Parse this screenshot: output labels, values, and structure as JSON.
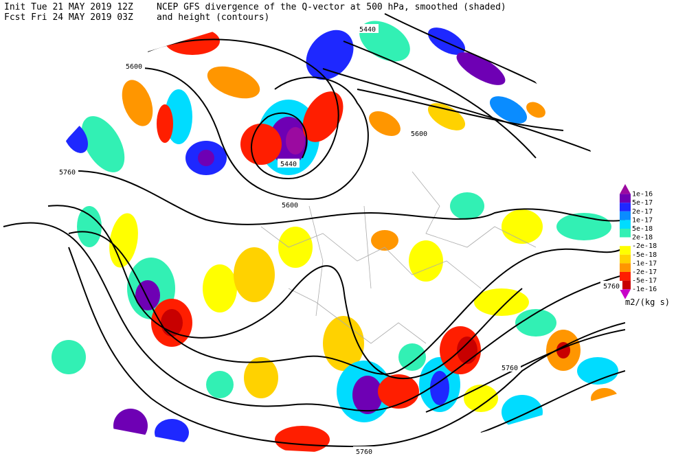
{
  "header": {
    "init": "Init  Tue 21 MAY 2019 12Z",
    "fcst": "Fcst Fri 24 MAY 2019 03Z",
    "title": "NCEP GFS divergence of the Q-vector at 500 hPa, smoothed (shaded)",
    "subtitle": "and height (contours)"
  },
  "contour_labels": [
    "5440",
    "5600",
    "5440",
    "5600",
    "5600",
    "5760",
    "5760",
    "5760",
    "5760"
  ],
  "colorbar": {
    "labels": [
      "1e-16",
      "5e-17",
      "2e-17",
      "1e-17",
      "5e-18",
      "2e-18",
      "-2e-18",
      "-5e-18",
      "-1e-17",
      "-2e-17",
      "-5e-17",
      "-1e-16"
    ],
    "colors": [
      "#9b0aa0",
      "#6e00b4",
      "#1e28ff",
      "#0a8cff",
      "#00dcff",
      "#32f0b4",
      "#ffffff",
      "#ffff00",
      "#ffd200",
      "#ff9600",
      "#ff1e00",
      "#c80000",
      "#c800c8"
    ],
    "units": "m2/(kg s)"
  }
}
